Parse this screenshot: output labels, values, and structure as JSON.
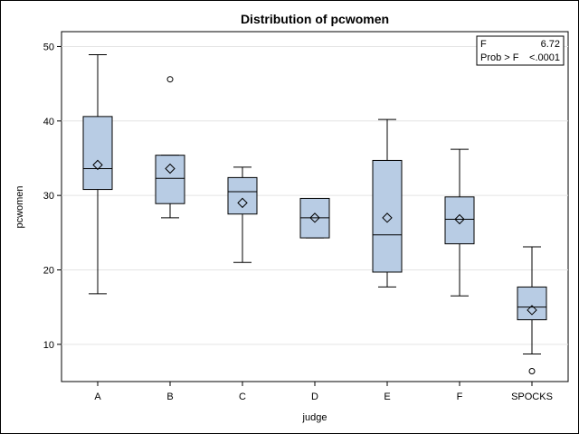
{
  "chart_data": {
    "type": "box",
    "title": "Distribution of pcwomen",
    "xlabel": "judge",
    "ylabel": "pcwomen",
    "categories": [
      "A",
      "B",
      "C",
      "D",
      "E",
      "F",
      "SPOCKS"
    ],
    "ylim": [
      5,
      52
    ],
    "yticks": [
      10,
      20,
      30,
      40,
      50
    ],
    "grid": true,
    "box_fill": "#b8cce4",
    "boxes": [
      {
        "category": "A",
        "whisker_low": 16.8,
        "q1": 30.8,
        "median": 33.6,
        "q3": 40.6,
        "whisker_high": 48.9,
        "mean": 34.1,
        "outliers": []
      },
      {
        "category": "B",
        "whisker_low": 27.0,
        "q1": 28.9,
        "median": 32.3,
        "q3": 35.4,
        "whisker_high": 35.4,
        "mean": 33.6,
        "outliers": [
          45.6
        ]
      },
      {
        "category": "C",
        "whisker_low": 21.0,
        "q1": 27.5,
        "median": 30.5,
        "q3": 32.4,
        "whisker_high": 33.8,
        "mean": 29.0,
        "outliers": []
      },
      {
        "category": "D",
        "whisker_low": 24.3,
        "q1": 24.3,
        "median": 27.0,
        "q3": 29.6,
        "whisker_high": 29.6,
        "mean": 27.0,
        "outliers": []
      },
      {
        "category": "E",
        "whisker_low": 17.7,
        "q1": 19.7,
        "median": 24.7,
        "q3": 34.7,
        "whisker_high": 40.2,
        "mean": 27.0,
        "outliers": []
      },
      {
        "category": "F",
        "whisker_low": 16.5,
        "q1": 23.5,
        "median": 26.8,
        "q3": 29.8,
        "whisker_high": 36.2,
        "mean": 26.8,
        "outliers": []
      },
      {
        "category": "SPOCKS",
        "whisker_low": 8.7,
        "q1": 13.3,
        "median": 15.0,
        "q3": 17.7,
        "whisker_high": 23.1,
        "mean": 14.6,
        "outliers": [
          6.4
        ]
      }
    ],
    "stats_box": {
      "row1_label": "F",
      "row1_value": "6.72",
      "row2_label": "Prob > F",
      "row2_value": "<.0001",
      "placement": "top-right"
    }
  }
}
